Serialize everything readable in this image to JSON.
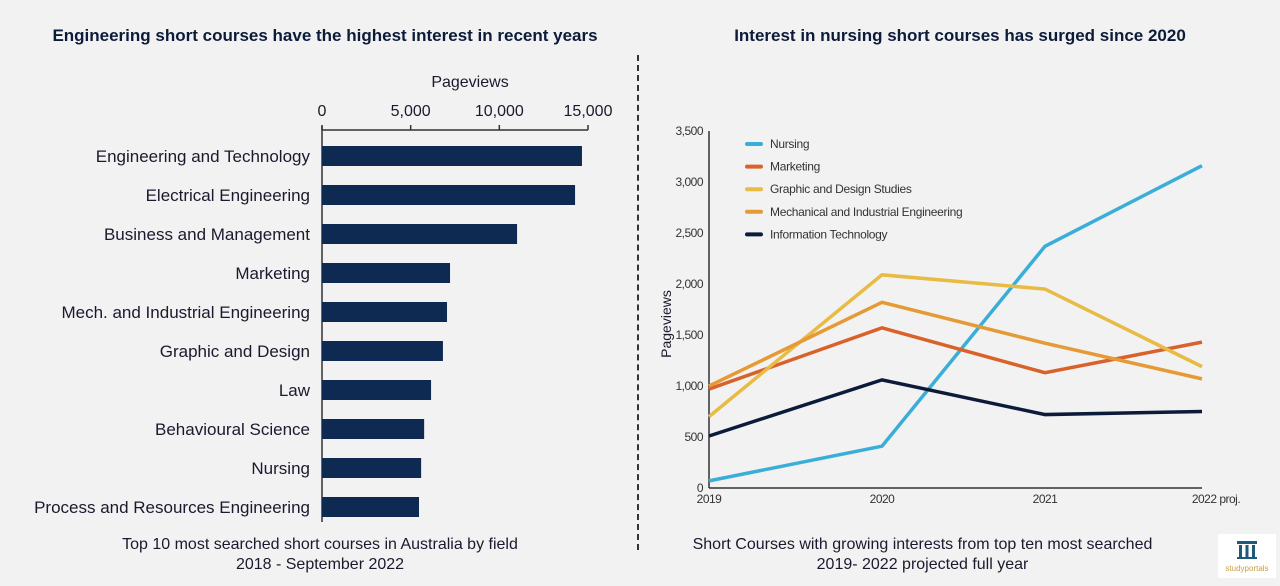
{
  "left": {
    "title": "Engineering short courses have the highest interest in recent years",
    "caption_line1": "Top 10 most searched short courses in Australia by field",
    "caption_line2": "2018 - September 2022"
  },
  "right": {
    "title": "Interest in nursing short courses has surged since 2020",
    "caption_line1": "Short Courses with growing interests from top ten most searched",
    "caption_line2": "2019- 2022 projected full year"
  },
  "logo": {
    "text": "studyportals"
  },
  "chart_data": [
    {
      "type": "bar",
      "orientation": "horizontal",
      "xlabel": "Pageviews",
      "xlim": [
        0,
        15000
      ],
      "xticks": [
        "0",
        "5,000",
        "10,000",
        "15,000"
      ],
      "xtick_values": [
        0,
        5000,
        10000,
        15000
      ],
      "axis_position": "top",
      "bar_color": "#0f2a52",
      "categories": [
        "Engineering and Technology",
        "Electrical Engineering",
        "Business and Management",
        "Marketing",
        "Mech. and Industrial Engineering",
        "Graphic and Design",
        "Law",
        "Behavioural Science",
        "Nursing",
        "Process and Resources Engineering"
      ],
      "values": [
        14660,
        14270,
        11000,
        7220,
        7050,
        6820,
        6150,
        5760,
        5590,
        5470
      ]
    },
    {
      "type": "line",
      "ylabel": "Pageviews",
      "ylim": [
        0,
        3500
      ],
      "yticks": [
        "0",
        "500",
        "1,000",
        "1,500",
        "2,000",
        "2,500",
        "3,000",
        "3,500"
      ],
      "ytick_values": [
        0,
        500,
        1000,
        1500,
        2000,
        2500,
        3000,
        3500
      ],
      "categories": [
        "2019",
        "2020",
        "2021",
        "2022 proj."
      ],
      "legend_position": "top-left",
      "grid": false,
      "series": [
        {
          "name": "Nursing",
          "color": "#3aaed8",
          "values": [
            70,
            410,
            2370,
            3160
          ]
        },
        {
          "name": "Marketing",
          "color": "#d9622b",
          "values": [
            970,
            1570,
            1130,
            1430
          ]
        },
        {
          "name": "Graphic and Design Studies",
          "color": "#e8bb44",
          "values": [
            700,
            2090,
            1950,
            1190
          ]
        },
        {
          "name": "Mechanical and Industrial Engineering",
          "color": "#e59a35",
          "values": [
            1000,
            1820,
            1420,
            1070
          ]
        },
        {
          "name": "Information Technology",
          "color": "#0d1b3a",
          "values": [
            510,
            1060,
            720,
            750
          ]
        }
      ]
    }
  ]
}
